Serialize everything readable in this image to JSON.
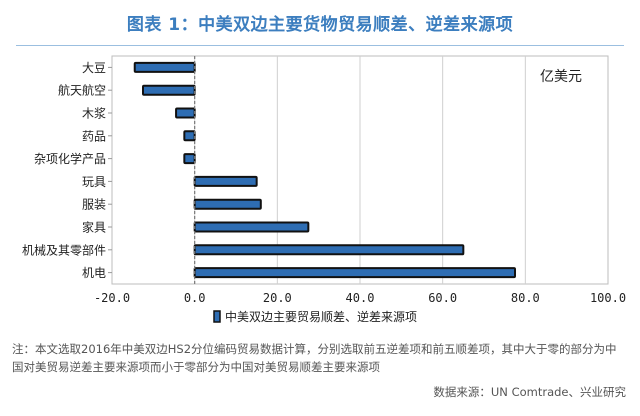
{
  "title": "图表 1：中美双边主要货物贸易顺差、逆差来源项",
  "note": "注：本文选取2016年中美双边HS2分位编码贸易数据计算，分别选取前五逆差项和前五顺差项，其中大于零的部分为中国对美贸易逆差主要来源项而小于零部分为中国对美贸易顺差主要来源项",
  "source": "数据来源：UN Comtrade、兴业研究",
  "chart_data": {
    "type": "bar",
    "orientation": "horizontal",
    "unit_label": "亿美元",
    "categories": [
      "大豆",
      "航天航空",
      "木浆",
      "药品",
      "杂项化学产品",
      "玩具",
      "服装",
      "家具",
      "机械及其零部件",
      "机电"
    ],
    "series": [
      {
        "name": "中美双边主要贸易顺差、逆差来源项",
        "values": [
          -14.5,
          -12.5,
          -4.5,
          -2.5,
          -2.5,
          15.0,
          16.0,
          27.5,
          65.0,
          77.5
        ]
      }
    ],
    "xlim": [
      -20,
      100
    ],
    "xticks": [
      "-20.0",
      "0.0",
      "20.0",
      "40.0",
      "60.0",
      "80.0",
      "100.0"
    ],
    "tick_values": [
      -20,
      0,
      20,
      40,
      60,
      80,
      100
    ],
    "grid": true,
    "legend_position": "bottom",
    "colors": {
      "bar": "#2e6db3",
      "bar_border": "#111111",
      "grid": "#cfcfcf",
      "title": "#3c7ebf"
    }
  }
}
